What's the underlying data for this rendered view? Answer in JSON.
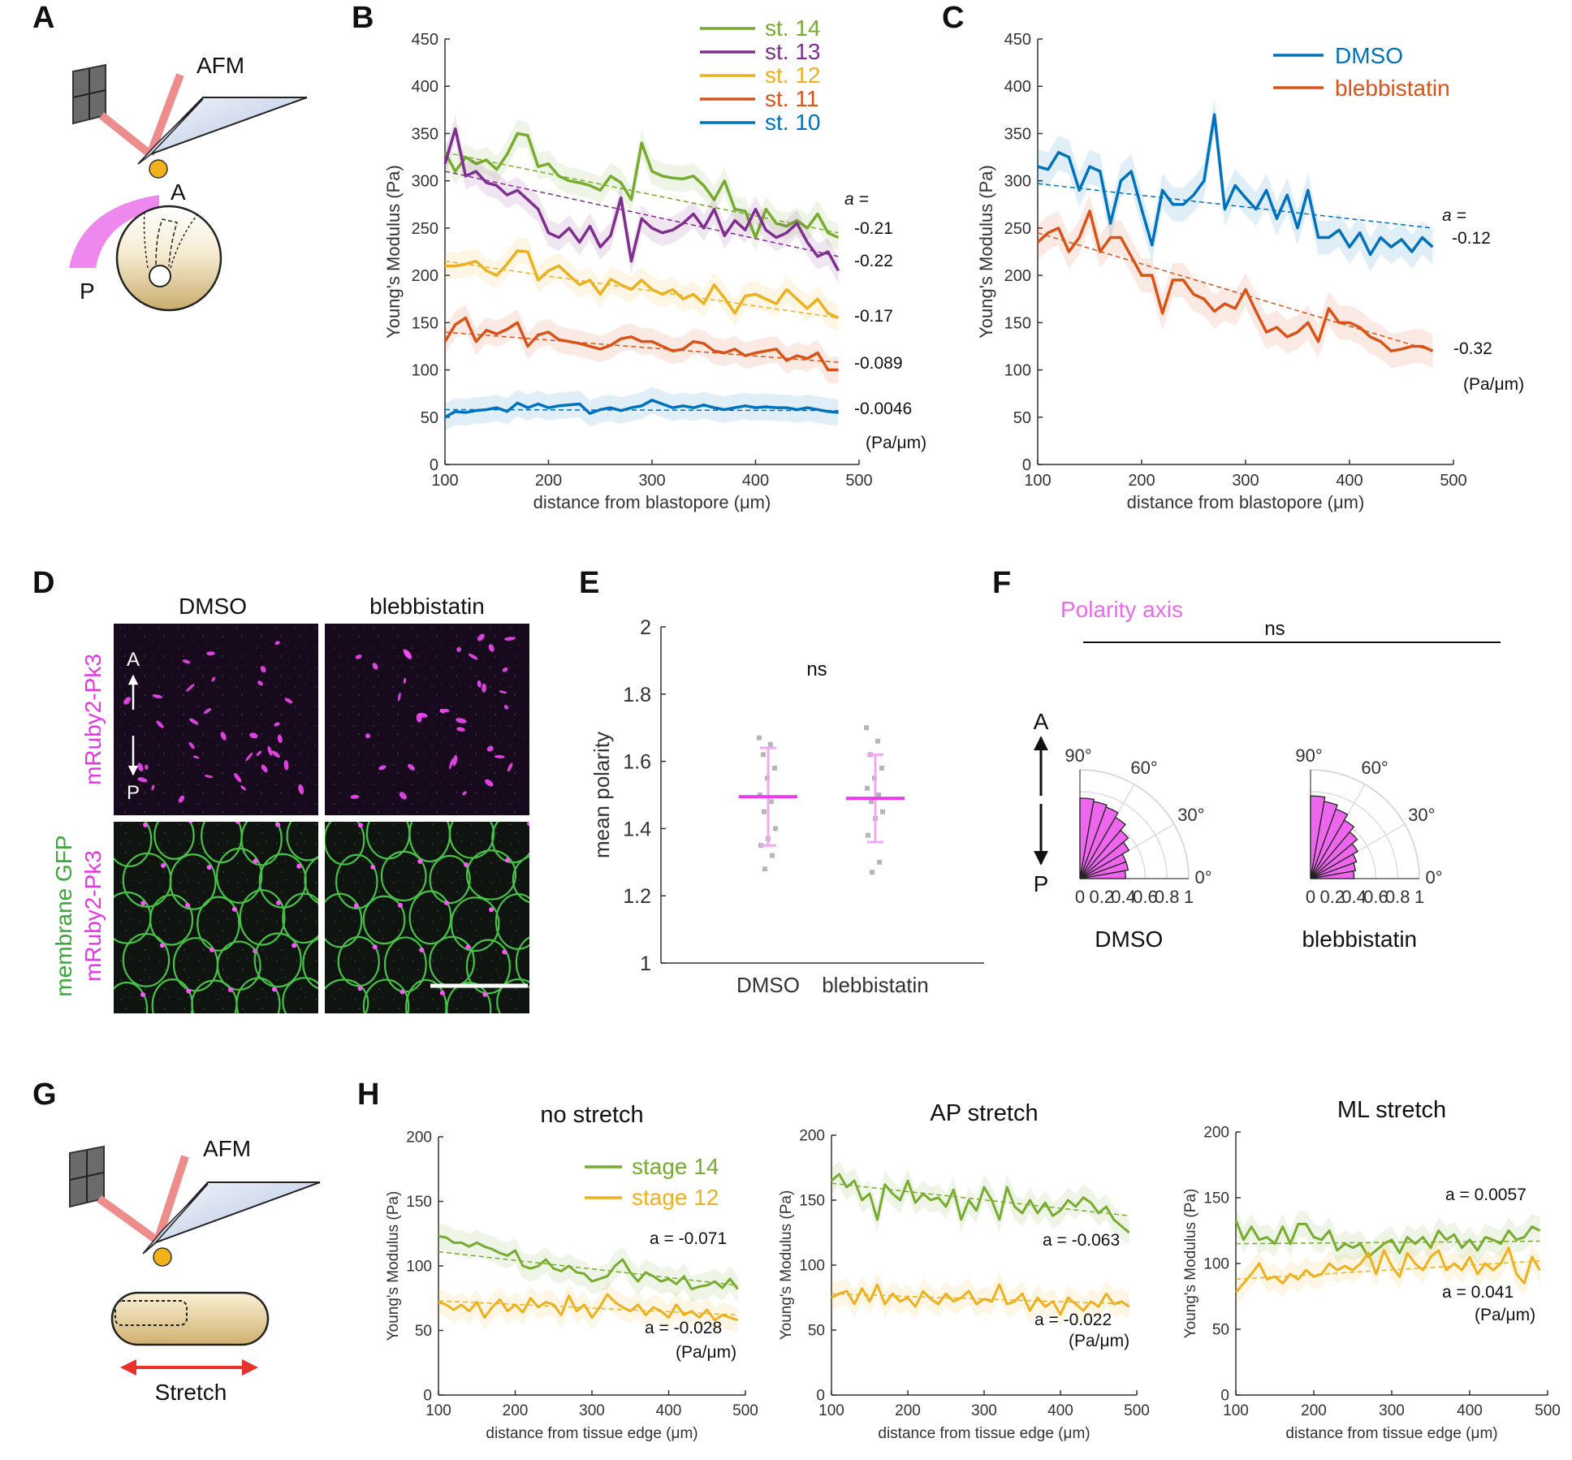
{
  "panels": {
    "A": {
      "letter": "A",
      "afm": "AFM",
      "ant": "A",
      "post": "P"
    },
    "B": {
      "letter": "B"
    },
    "C": {
      "letter": "C"
    },
    "D": {
      "letter": "D",
      "col1": "DMSO",
      "col2": "blebbistatin",
      "row1_label": "mRuby2-Pk3",
      "row2_label_a": "membrane GFP",
      "row2_label_b": "mRuby2-Pk3",
      "ant": "A",
      "post": "P"
    },
    "E": {
      "letter": "E"
    },
    "F": {
      "letter": "F",
      "title": "Polarity axis",
      "sig": "ns",
      "ant": "A",
      "post": "P"
    },
    "G": {
      "letter": "G",
      "afm": "AFM",
      "stretch": "Stretch"
    },
    "H": {
      "letter": "H"
    }
  },
  "colors": {
    "green": "#77ac30",
    "purple": "#7e2f8e",
    "yellow": "#edb120",
    "orange": "#d95319",
    "blue": "#0072bd",
    "magenta": "#ff44ff",
    "pink": "#ee6fe9"
  },
  "chart_data": [
    {
      "id": "B",
      "type": "line",
      "xlabel": "distance from blastopore (μm)",
      "ylabel": "Young's Modulus (Pa)",
      "xlim": [
        100,
        500
      ],
      "ylim": [
        0,
        450
      ],
      "xticks": [
        100,
        200,
        300,
        400,
        500
      ],
      "yticks": [
        0,
        50,
        100,
        150,
        200,
        250,
        300,
        350,
        400,
        450
      ],
      "x": [
        100,
        110,
        120,
        130,
        140,
        150,
        160,
        170,
        180,
        190,
        200,
        210,
        220,
        230,
        240,
        250,
        260,
        270,
        280,
        290,
        300,
        310,
        320,
        330,
        340,
        350,
        360,
        370,
        380,
        390,
        400,
        410,
        420,
        430,
        440,
        450,
        460,
        470,
        480
      ],
      "series": [
        {
          "name": "st. 14",
          "color": "#77ac30",
          "slope": "-0.21",
          "fit": [
            330,
            245
          ],
          "values": [
            330,
            310,
            325,
            318,
            322,
            312,
            328,
            350,
            348,
            315,
            318,
            305,
            300,
            298,
            295,
            290,
            305,
            298,
            280,
            340,
            310,
            305,
            303,
            302,
            305,
            295,
            280,
            300,
            270,
            268,
            240,
            270,
            255,
            252,
            258,
            250,
            265,
            245,
            240
          ]
        },
        {
          "name": "st. 13",
          "color": "#7e2f8e",
          "slope": "-0.22",
          "fit": [
            310,
            220
          ],
          "values": [
            318,
            355,
            305,
            310,
            298,
            295,
            285,
            290,
            280,
            270,
            245,
            240,
            250,
            235,
            252,
            230,
            242,
            282,
            215,
            260,
            250,
            245,
            248,
            255,
            265,
            250,
            270,
            242,
            258,
            248,
            270,
            248,
            240,
            245,
            255,
            235,
            220,
            225,
            205
          ]
        },
        {
          "name": "st. 12",
          "color": "#edb120",
          "slope": "-0.17",
          "fit": [
            215,
            155
          ],
          "values": [
            210,
            210,
            212,
            215,
            205,
            200,
            212,
            226,
            225,
            195,
            205,
            210,
            200,
            190,
            195,
            180,
            196,
            190,
            185,
            195,
            185,
            180,
            185,
            175,
            180,
            170,
            190,
            176,
            160,
            178,
            180,
            175,
            170,
            185,
            175,
            165,
            175,
            160,
            155
          ]
        },
        {
          "name": "st. 11",
          "color": "#d95319",
          "slope": "-0.089",
          "fit": [
            140,
            108
          ],
          "values": [
            130,
            148,
            155,
            130,
            142,
            138,
            143,
            150,
            125,
            137,
            140,
            132,
            130,
            128,
            125,
            122,
            126,
            133,
            135,
            130,
            130,
            125,
            120,
            122,
            130,
            128,
            120,
            118,
            122,
            115,
            118,
            120,
            122,
            110,
            115,
            112,
            118,
            100,
            100
          ]
        },
        {
          "name": "st. 10",
          "color": "#0072bd",
          "slope": "-0.0046",
          "fit": [
            58,
            57
          ],
          "values": [
            50,
            56,
            55,
            57,
            58,
            60,
            56,
            65,
            60,
            64,
            60,
            62,
            63,
            64,
            54,
            58,
            60,
            57,
            60,
            62,
            68,
            64,
            60,
            62,
            60,
            63,
            60,
            58,
            60,
            62,
            60,
            61,
            60,
            60,
            58,
            60,
            58,
            56,
            55
          ]
        }
      ],
      "slope_prefix": "a =",
      "slope_unit": "(Pa/μm)"
    },
    {
      "id": "C",
      "type": "line",
      "xlabel": "distance from blastopore (μm)",
      "ylabel": "Young's Modulus (Pa)",
      "xlim": [
        100,
        500
      ],
      "ylim": [
        0,
        450
      ],
      "xticks": [
        100,
        200,
        300,
        400,
        500
      ],
      "yticks": [
        0,
        50,
        100,
        150,
        200,
        250,
        300,
        350,
        400,
        450
      ],
      "x": [
        100,
        110,
        120,
        130,
        140,
        150,
        160,
        170,
        180,
        190,
        200,
        210,
        220,
        230,
        240,
        250,
        260,
        270,
        280,
        290,
        300,
        310,
        320,
        330,
        340,
        350,
        360,
        370,
        380,
        390,
        400,
        410,
        420,
        430,
        440,
        450,
        460,
        470,
        480
      ],
      "series": [
        {
          "name": "DMSO",
          "color": "#0072bd",
          "slope": "-0.12",
          "fit": [
            297,
            250
          ],
          "values": [
            315,
            312,
            330,
            325,
            290,
            315,
            310,
            255,
            300,
            310,
            270,
            232,
            290,
            275,
            275,
            285,
            300,
            370,
            270,
            295,
            282,
            270,
            290,
            260,
            285,
            250,
            290,
            240,
            240,
            248,
            230,
            245,
            222,
            240,
            230,
            238,
            225,
            240,
            230
          ]
        },
        {
          "name": "blebbistatin",
          "color": "#d95319",
          "slope": "-0.32",
          "fit": [
            245,
            120
          ],
          "values": [
            235,
            245,
            250,
            225,
            240,
            268,
            225,
            240,
            240,
            220,
            200,
            200,
            160,
            195,
            195,
            180,
            175,
            162,
            170,
            165,
            185,
            162,
            140,
            145,
            135,
            140,
            150,
            130,
            165,
            150,
            150,
            145,
            135,
            130,
            120,
            122,
            125,
            125,
            120
          ]
        }
      ],
      "slope_prefix": "a =",
      "slope_unit": "(Pa/μm)"
    },
    {
      "id": "E",
      "type": "scatter",
      "ylabel": "mean polarity",
      "ylim": [
        1,
        2
      ],
      "yticks": [
        1,
        1.2,
        1.4,
        1.6,
        1.8,
        2
      ],
      "categories": [
        "DMSO",
        "blebbistatin"
      ],
      "means": [
        1.495,
        1.49
      ],
      "sd_low": [
        1.35,
        1.36
      ],
      "sd_high": [
        1.64,
        1.62
      ],
      "points": [
        [
          1.67,
          1.65,
          1.62,
          1.58,
          1.55,
          1.5,
          1.48,
          1.45,
          1.4,
          1.37,
          1.35,
          1.32,
          1.28
        ],
        [
          1.7,
          1.66,
          1.62,
          1.58,
          1.55,
          1.52,
          1.5,
          1.48,
          1.45,
          1.43,
          1.38,
          1.3,
          1.27
        ]
      ],
      "annotation": "ns"
    },
    {
      "id": "F",
      "type": "polar-histogram",
      "angle_ticks": [
        "90°",
        "60°",
        "30°",
        "0°"
      ],
      "radius_ticks": [
        "0",
        "0.2",
        "0.4",
        "0.6",
        "0.8",
        "1"
      ],
      "categories": [
        "DMSO",
        "blebbistatin"
      ],
      "bins_deg": [
        [
          0,
          10
        ],
        [
          10,
          20
        ],
        [
          20,
          30
        ],
        [
          30,
          40
        ],
        [
          40,
          50
        ],
        [
          50,
          60
        ],
        [
          60,
          70
        ],
        [
          70,
          80
        ],
        [
          80,
          90
        ]
      ],
      "series": [
        {
          "name": "DMSO",
          "values": [
            0.42,
            0.45,
            0.45,
            0.52,
            0.58,
            0.65,
            0.7,
            0.72,
            0.74
          ]
        },
        {
          "name": "blebbistatin",
          "values": [
            0.4,
            0.42,
            0.45,
            0.5,
            0.56,
            0.62,
            0.68,
            0.72,
            0.76
          ]
        }
      ]
    },
    {
      "id": "H1",
      "type": "line",
      "title": "no stretch",
      "xlabel": "distance from tissue edge (μm)",
      "ylabel": "Young's Modulus (Pa)",
      "xlim": [
        100,
        500
      ],
      "ylim": [
        0,
        200
      ],
      "xticks": [
        100,
        200,
        300,
        400,
        500
      ],
      "yticks": [
        0,
        50,
        100,
        150,
        200
      ],
      "x": [
        100,
        110,
        120,
        130,
        140,
        150,
        160,
        170,
        180,
        190,
        200,
        210,
        220,
        230,
        240,
        250,
        260,
        270,
        280,
        290,
        300,
        310,
        320,
        330,
        340,
        350,
        360,
        370,
        380,
        390,
        400,
        410,
        420,
        430,
        440,
        450,
        460,
        470,
        480,
        490
      ],
      "series": [
        {
          "name": "stage 14",
          "color": "#77ac30",
          "slope": "a = -0.071",
          "fit": [
            111,
            85
          ],
          "values": [
            123,
            122,
            118,
            118,
            115,
            118,
            115,
            113,
            110,
            108,
            112,
            100,
            98,
            100,
            105,
            98,
            96,
            100,
            95,
            94,
            88,
            90,
            92,
            100,
            105,
            95,
            88,
            95,
            92,
            88,
            90,
            86,
            92,
            82,
            84,
            85,
            88,
            83,
            90,
            82
          ]
        },
        {
          "name": "stage 12",
          "color": "#edb120",
          "slope": "a = -0.028",
          "fit": [
            73,
            62
          ],
          "values": [
            72,
            70,
            66,
            70,
            65,
            72,
            60,
            68,
            74,
            65,
            70,
            64,
            75,
            68,
            72,
            70,
            62,
            77,
            65,
            70,
            60,
            68,
            78,
            72,
            68,
            65,
            70,
            62,
            68,
            65,
            60,
            70,
            62,
            65,
            60,
            66,
            58,
            62,
            60,
            58
          ]
        }
      ],
      "slope_unit": "(Pa/μm)"
    },
    {
      "id": "H2",
      "type": "line",
      "title": "AP stretch",
      "xlabel": "distance from tissue edge (μm)",
      "ylabel": "Young's Modulus (Pa)",
      "xlim": [
        100,
        500
      ],
      "ylim": [
        0,
        200
      ],
      "xticks": [
        100,
        200,
        300,
        400,
        500
      ],
      "yticks": [
        0,
        50,
        100,
        150,
        200
      ],
      "x": [
        100,
        110,
        120,
        130,
        140,
        150,
        160,
        170,
        180,
        190,
        200,
        210,
        220,
        230,
        240,
        250,
        260,
        270,
        280,
        290,
        300,
        310,
        320,
        330,
        340,
        350,
        360,
        370,
        380,
        390,
        400,
        410,
        420,
        430,
        440,
        450,
        460,
        470,
        480,
        490
      ],
      "series": [
        {
          "name": "stage 14",
          "color": "#77ac30",
          "slope": "a = -0.063",
          "fit": [
            163,
            138
          ],
          "values": [
            165,
            170,
            160,
            165,
            150,
            155,
            135,
            162,
            155,
            150,
            165,
            148,
            155,
            150,
            152,
            145,
            158,
            135,
            150,
            142,
            160,
            150,
            135,
            160,
            145,
            140,
            150,
            140,
            148,
            138,
            142,
            150,
            145,
            152,
            148,
            140,
            145,
            135,
            130,
            125
          ]
        },
        {
          "name": "stage 12",
          "color": "#edb120",
          "slope": "a = -0.022",
          "fit": [
            78,
            70
          ],
          "values": [
            75,
            78,
            80,
            70,
            82,
            72,
            85,
            70,
            78,
            72,
            75,
            68,
            80,
            74,
            70,
            78,
            72,
            75,
            80,
            70,
            74,
            72,
            85,
            70,
            72,
            78,
            65,
            75,
            68,
            72,
            62,
            75,
            70,
            65,
            72,
            68,
            78,
            70,
            72,
            68
          ]
        }
      ],
      "slope_unit": "(Pa/μm)"
    },
    {
      "id": "H3",
      "type": "line",
      "title": "ML stretch",
      "xlabel": "distance from tissue edge (μm)",
      "ylabel": "Young's Modulus (Pa)",
      "xlim": [
        100,
        500
      ],
      "ylim": [
        0,
        200
      ],
      "xticks": [
        100,
        200,
        300,
        400,
        500
      ],
      "yticks": [
        0,
        50,
        100,
        150,
        200
      ],
      "x": [
        100,
        110,
        120,
        130,
        140,
        150,
        160,
        170,
        180,
        190,
        200,
        210,
        220,
        230,
        240,
        250,
        260,
        270,
        280,
        290,
        300,
        310,
        320,
        330,
        340,
        350,
        360,
        370,
        380,
        390,
        400,
        410,
        420,
        430,
        440,
        450,
        460,
        470,
        480,
        490
      ],
      "series": [
        {
          "name": "stage 14",
          "color": "#77ac30",
          "slope": "a = 0.0057",
          "fit": [
            115,
            117
          ],
          "values": [
            133,
            118,
            128,
            118,
            120,
            115,
            128,
            115,
            130,
            130,
            120,
            118,
            125,
            110,
            115,
            112,
            115,
            105,
            110,
            115,
            118,
            108,
            120,
            115,
            120,
            112,
            125,
            118,
            122,
            112,
            118,
            110,
            120,
            118,
            115,
            125,
            118,
            120,
            128,
            125
          ]
        },
        {
          "name": "stage 12",
          "color": "#edb120",
          "slope": "a = 0.041",
          "fit": [
            88,
            102
          ],
          "values": [
            78,
            85,
            92,
            100,
            88,
            90,
            85,
            92,
            88,
            95,
            90,
            92,
            100,
            95,
            98,
            95,
            100,
            108,
            92,
            110,
            98,
            90,
            108,
            100,
            95,
            105,
            110,
            95,
            100,
            95,
            105,
            92,
            100,
            95,
            100,
            112,
            92,
            85,
            105,
            95
          ]
        }
      ],
      "slope_unit": "(Pa/μm)"
    }
  ]
}
